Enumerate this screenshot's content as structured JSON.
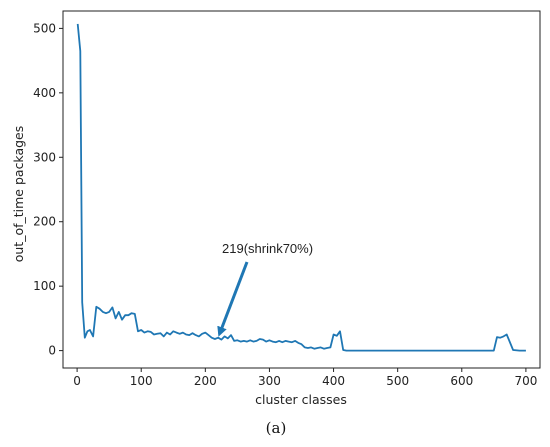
{
  "chart_data": {
    "type": "line",
    "title": "",
    "xlabel": "cluster classes",
    "ylabel": "out_of_time packages",
    "xlim": [
      -22,
      722
    ],
    "ylim": [
      -27,
      527
    ],
    "xticks": [
      0,
      100,
      200,
      300,
      400,
      500,
      600,
      700
    ],
    "yticks": [
      0,
      100,
      200,
      300,
      400,
      500
    ],
    "grid": false,
    "legend": "none",
    "series": [
      {
        "color": "#1f77b4",
        "x": [
          1,
          5,
          8,
          12,
          16,
          20,
          25,
          30,
          35,
          40,
          45,
          50,
          55,
          60,
          65,
          70,
          75,
          80,
          85,
          90,
          95,
          100,
          105,
          110,
          115,
          120,
          125,
          130,
          135,
          140,
          145,
          150,
          155,
          160,
          165,
          170,
          175,
          180,
          185,
          190,
          195,
          200,
          205,
          210,
          215,
          220,
          225,
          230,
          235,
          240,
          245,
          250,
          255,
          260,
          265,
          270,
          275,
          280,
          285,
          290,
          295,
          300,
          305,
          310,
          315,
          320,
          325,
          330,
          335,
          340,
          345,
          350,
          355,
          360,
          365,
          370,
          375,
          380,
          385,
          390,
          395,
          400,
          405,
          410,
          415,
          420,
          640,
          650,
          655,
          660,
          665,
          670,
          680,
          690,
          700
        ],
        "y": [
          507,
          465,
          75,
          20,
          30,
          32,
          22,
          68,
          65,
          60,
          58,
          60,
          67,
          50,
          60,
          48,
          55,
          55,
          58,
          57,
          30,
          32,
          28,
          30,
          29,
          25,
          26,
          27,
          22,
          28,
          25,
          30,
          28,
          26,
          28,
          25,
          24,
          27,
          24,
          22,
          26,
          28,
          24,
          20,
          18,
          20,
          17,
          22,
          19,
          24,
          15,
          16,
          14,
          15,
          14,
          16,
          14,
          15,
          18,
          17,
          14,
          16,
          14,
          13,
          15,
          13,
          15,
          14,
          13,
          15,
          12,
          10,
          5,
          4,
          5,
          3,
          4,
          5,
          3,
          4,
          5,
          25,
          23,
          30,
          1,
          0,
          0,
          0,
          21,
          20,
          22,
          25,
          1,
          0,
          0
        ]
      }
    ],
    "annotations": [
      {
        "text": "219(shrink70%)",
        "point": [
          219,
          18
        ]
      }
    ]
  },
  "caption": "(a)"
}
